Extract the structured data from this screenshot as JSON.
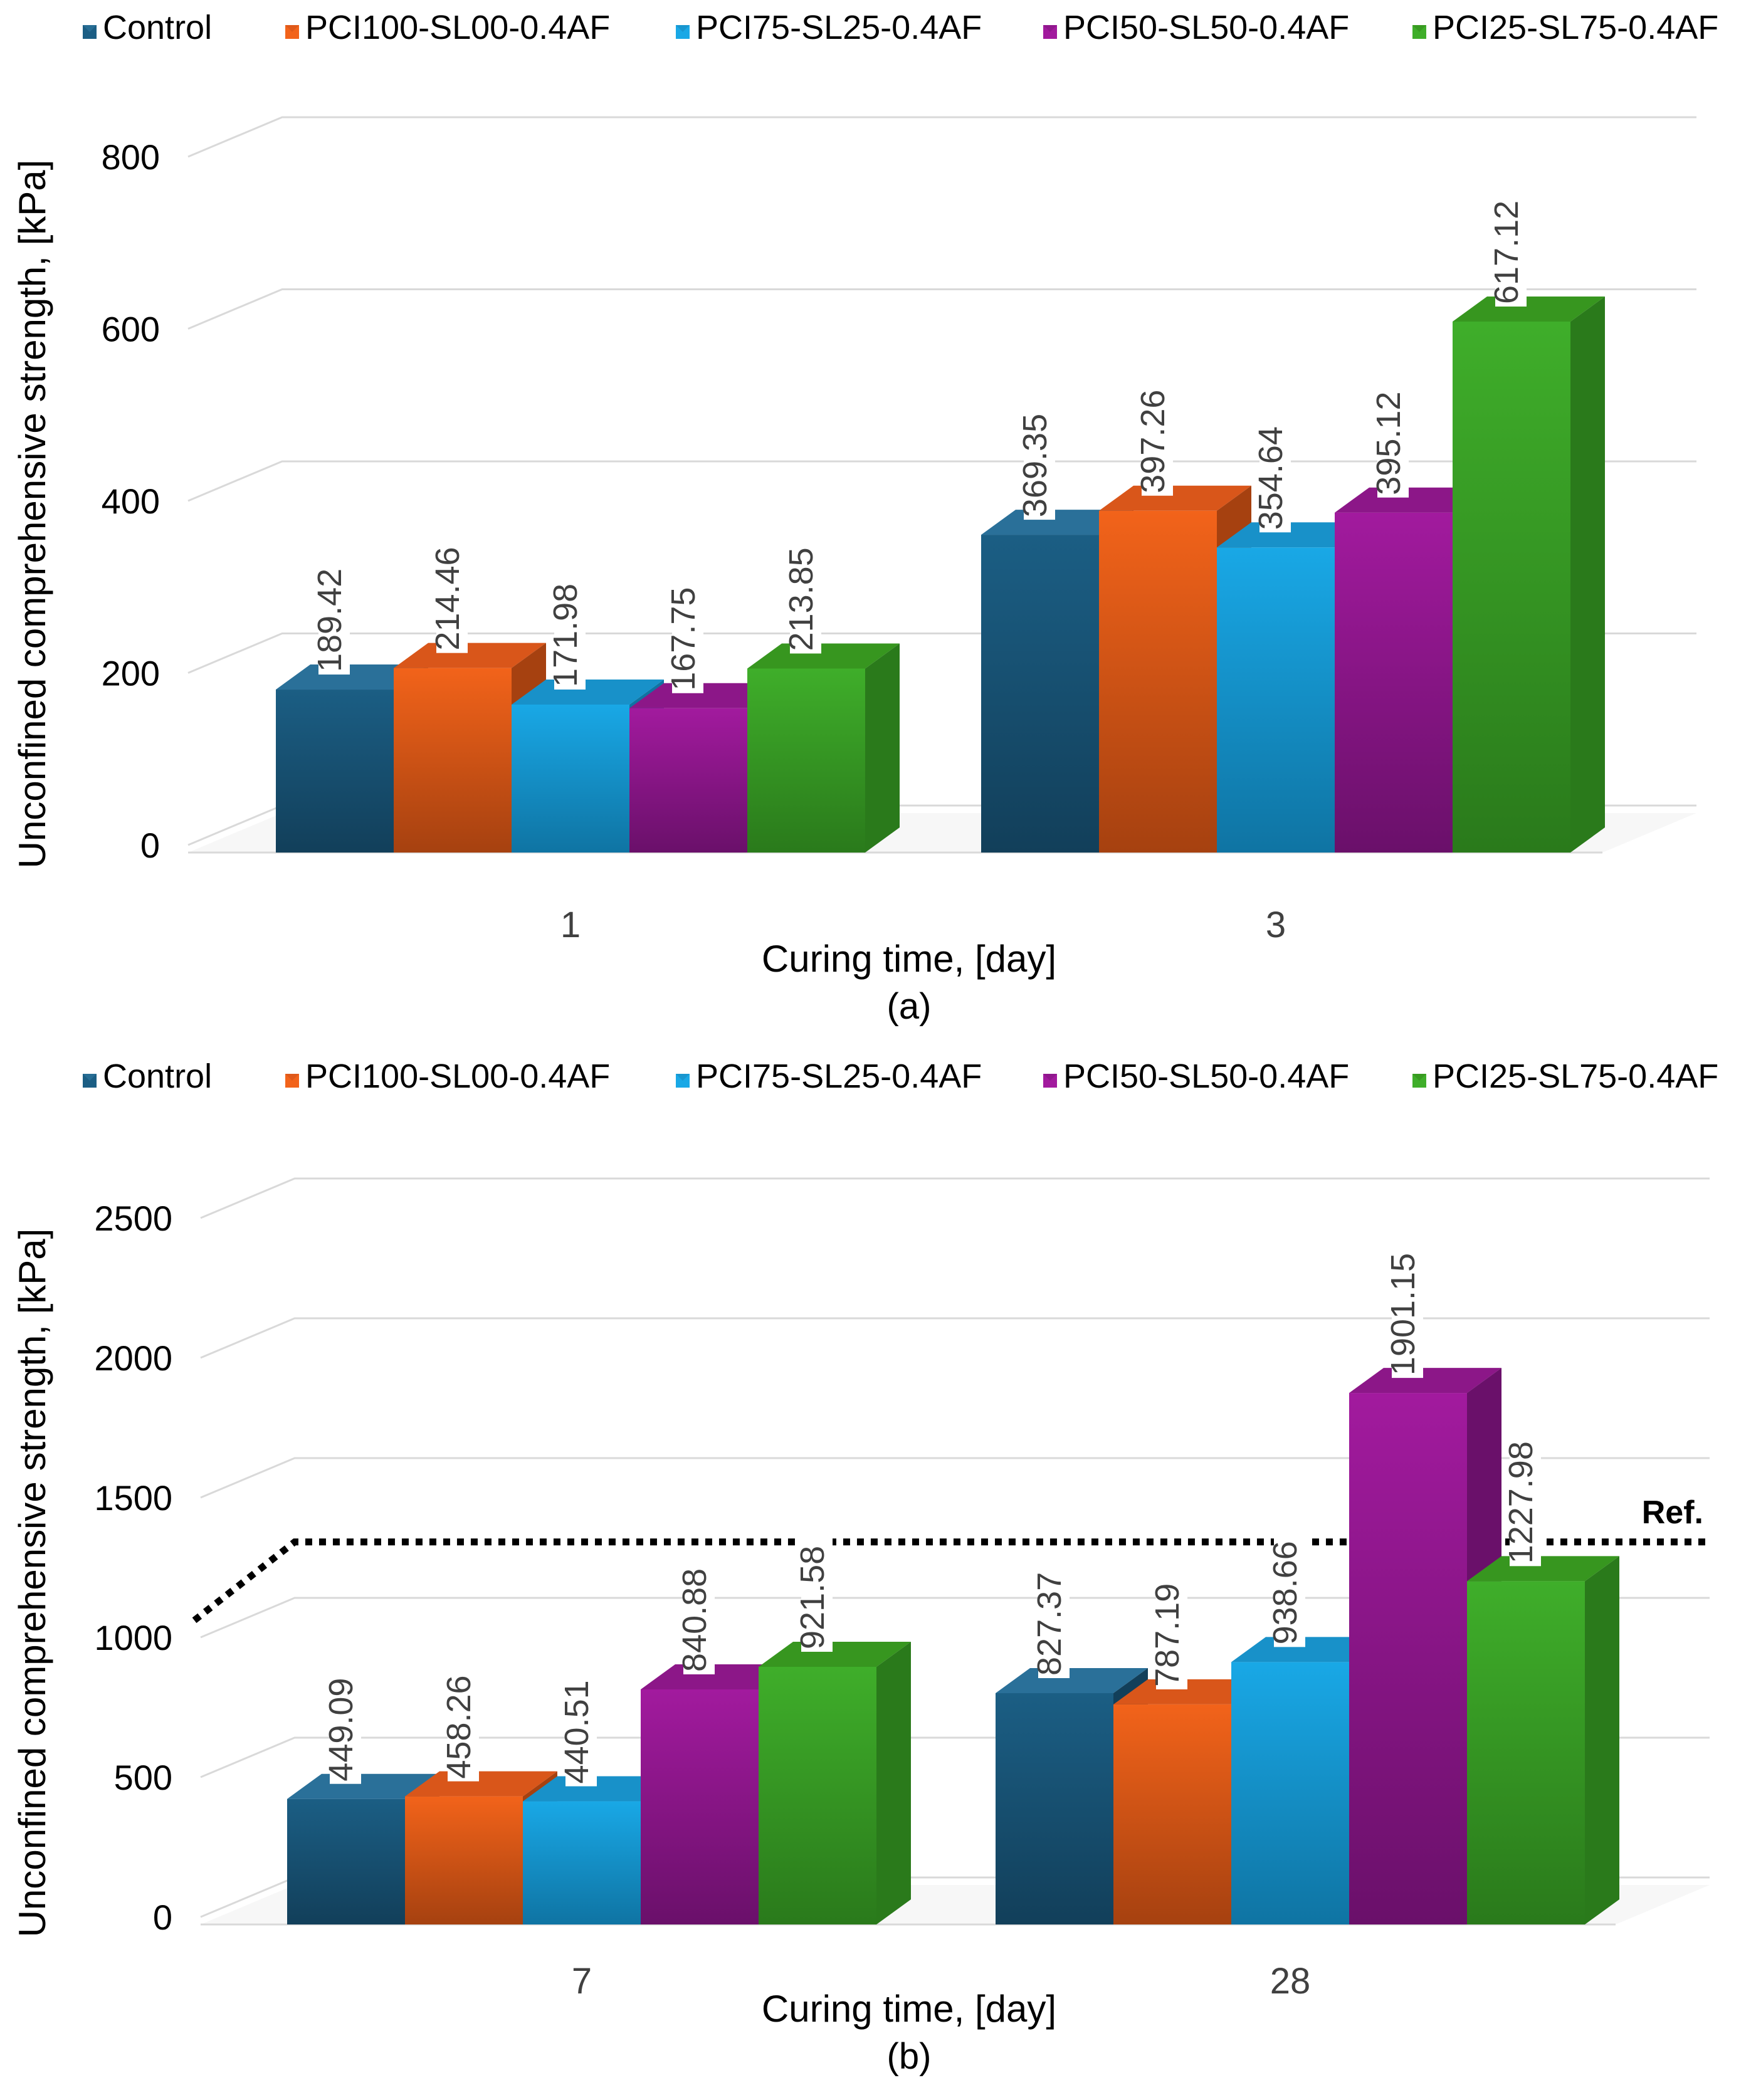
{
  "legend": [
    {
      "name": "Control",
      "color": "#1b5e84",
      "side": "#123f5a",
      "top": "#2a7099"
    },
    {
      "name": "PCI100-SL00-0.4AF",
      "color": "#f2631a",
      "side": "#a64110",
      "top": "#d9561a"
    },
    {
      "name": "PCI75-SL25-0.4AF",
      "color": "#19a8e6",
      "side": "#0f74a3",
      "top": "#1891c9"
    },
    {
      "name": "PCI50-SL50-0.4AF",
      "color": "#a21a9e",
      "side": "#6a106a",
      "top": "#8c1788"
    },
    {
      "name": "PCI25-SL75-0.4AF",
      "color": "#3fae2a",
      "side": "#2a7a1b",
      "top": "#37961f"
    }
  ],
  "chart_data": [
    {
      "type": "bar",
      "panel_label": "(a)",
      "xlabel": "Curing time, [day]",
      "ylabel": "Unconfined comprehensive strength, [kPa]",
      "ylim": [
        0,
        800
      ],
      "yticks": [
        "0",
        "200",
        "400",
        "600",
        "800"
      ],
      "categories": [
        "1",
        "3"
      ],
      "series": [
        {
          "name": "Control",
          "values": [
            189.42,
            369.35
          ],
          "labels": [
            "189.42",
            "369.35"
          ]
        },
        {
          "name": "PCI100-SL00-0.4AF",
          "values": [
            214.46,
            397.26
          ],
          "labels": [
            "214.46",
            "397.26"
          ]
        },
        {
          "name": "PCI75-SL25-0.4AF",
          "values": [
            171.98,
            354.64
          ],
          "labels": [
            "171.98",
            "354.64"
          ]
        },
        {
          "name": "PCI50-SL50-0.4AF",
          "values": [
            167.75,
            395.12
          ],
          "labels": [
            "167.75",
            "395.12"
          ]
        },
        {
          "name": "PCI25-SL75-0.4AF",
          "values": [
            213.85,
            617.12
          ],
          "labels": [
            "213.85",
            "617.12"
          ]
        }
      ],
      "grid": true,
      "legend_position": "top"
    },
    {
      "type": "bar",
      "panel_label": "(b)",
      "xlabel": "Curing time, [day]",
      "ylabel": "Unconfined comprehensive strength, [kPa]",
      "ylim": [
        0,
        2500
      ],
      "yticks": [
        "0",
        "500",
        "1000",
        "1500",
        "2000",
        "2500"
      ],
      "categories": [
        "7",
        "28"
      ],
      "series": [
        {
          "name": "Control",
          "values": [
            449.09,
            827.37
          ],
          "labels": [
            "449.09",
            "827.37"
          ]
        },
        {
          "name": "PCI100-SL00-0.4AF",
          "values": [
            458.26,
            787.19
          ],
          "labels": [
            "458.26",
            "787.19"
          ]
        },
        {
          "name": "PCI75-SL25-0.4AF",
          "values": [
            440.51,
            938.66
          ],
          "labels": [
            "440.51",
            "938.66"
          ]
        },
        {
          "name": "PCI50-SL50-0.4AF",
          "values": [
            840.88,
            1901.15
          ],
          "labels": [
            "840.88",
            "1901.15"
          ]
        },
        {
          "name": "PCI25-SL75-0.4AF",
          "values": [
            921.58,
            1227.98
          ],
          "labels": [
            "921.58",
            "1227.98"
          ]
        }
      ],
      "reference_line": {
        "label": "Ref.",
        "value": 1200
      },
      "grid": true,
      "legend_position": "top"
    }
  ]
}
